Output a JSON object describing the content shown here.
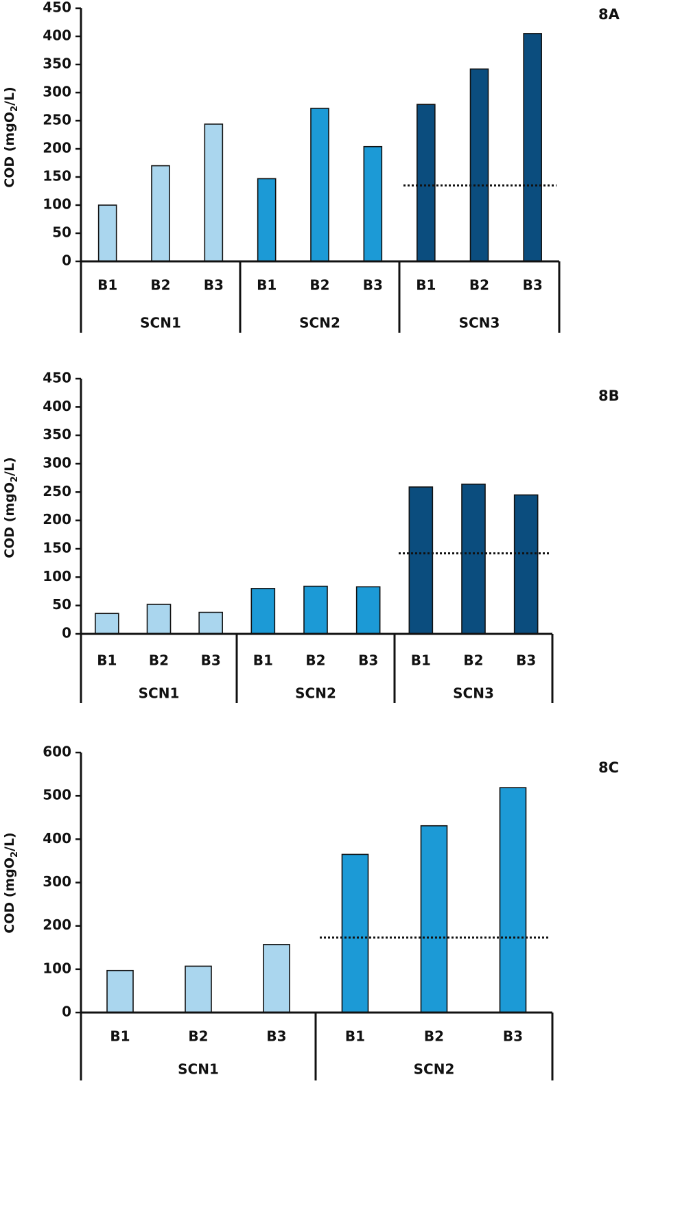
{
  "colors": {
    "SCN1": "#aad6ee",
    "SCN2": "#1c9ad6",
    "SCN3": "#0b4d7e",
    "axis": "#111111"
  },
  "chart_data": [
    {
      "type": "bar",
      "title": "8A",
      "ylabel": "COD (mgO2/L)",
      "ylabel_parts": [
        "COD (mgO",
        "2",
        "/L)"
      ],
      "ylim": [
        0,
        450
      ],
      "yticks": [
        0,
        50,
        100,
        150,
        200,
        250,
        300,
        350,
        400,
        450
      ],
      "groups": [
        {
          "name": "SCN1",
          "categories": [
            "B1",
            "B2",
            "B3"
          ],
          "values": [
            100,
            170,
            244
          ]
        },
        {
          "name": "SCN2",
          "categories": [
            "B1",
            "B2",
            "B3"
          ],
          "values": [
            147,
            272,
            204
          ]
        },
        {
          "name": "SCN3",
          "categories": [
            "B1",
            "B2",
            "B3"
          ],
          "values": [
            279,
            342,
            405
          ]
        }
      ],
      "reference_line": {
        "value": 135,
        "style": "dotted",
        "from_group": "SCN3"
      }
    },
    {
      "type": "bar",
      "title": "8B",
      "ylabel": "COD (mgO2/L)",
      "ylabel_parts": [
        "COD (mgO",
        "2",
        "/L)"
      ],
      "ylim": [
        0,
        450
      ],
      "yticks": [
        0,
        50,
        100,
        150,
        200,
        250,
        300,
        350,
        400,
        450
      ],
      "groups": [
        {
          "name": "SCN1",
          "categories": [
            "B1",
            "B2",
            "B3"
          ],
          "values": [
            36,
            52,
            38
          ]
        },
        {
          "name": "SCN2",
          "categories": [
            "B1",
            "B2",
            "B3"
          ],
          "values": [
            80,
            84,
            83
          ]
        },
        {
          "name": "SCN3",
          "categories": [
            "B1",
            "B2",
            "B3"
          ],
          "values": [
            259,
            264,
            245
          ]
        }
      ],
      "reference_line": {
        "value": 142,
        "style": "dotted",
        "from_group": "SCN3"
      }
    },
    {
      "type": "bar",
      "title": "8C",
      "ylabel": "COD (mgO2/L)",
      "ylabel_parts": [
        "COD (mgO",
        "2",
        "/L)"
      ],
      "ylim": [
        0,
        600
      ],
      "yticks": [
        0,
        100,
        200,
        300,
        400,
        500,
        600
      ],
      "groups": [
        {
          "name": "SCN1",
          "categories": [
            "B1",
            "B2",
            "B3"
          ],
          "values": [
            97,
            107,
            157
          ]
        },
        {
          "name": "SCN2",
          "categories": [
            "B1",
            "B2",
            "B3"
          ],
          "values": [
            365,
            431,
            519
          ]
        }
      ],
      "reference_line": {
        "value": 173,
        "style": "dotted",
        "from_group": "SCN2"
      }
    }
  ]
}
